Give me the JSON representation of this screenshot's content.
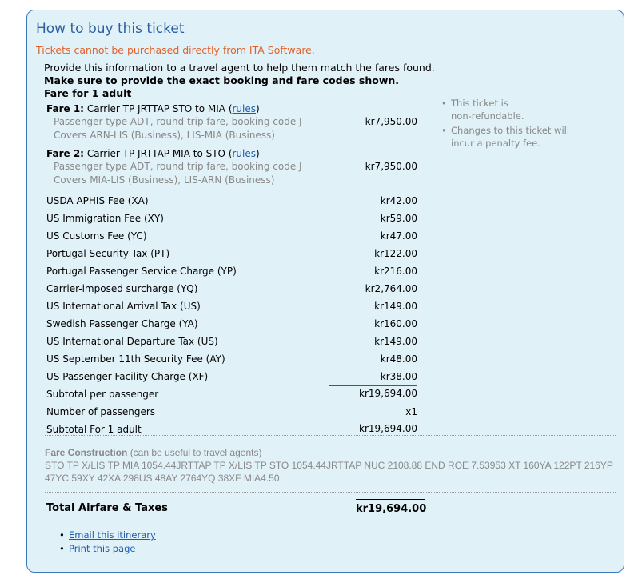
{
  "title": "How to buy this ticket",
  "warning": "Tickets cannot be purchased directly from ITA Software.",
  "intro": {
    "line1": "Provide this information to a travel agent to help them match the fares found.",
    "line2": "Make sure to provide the exact booking and fare codes shown.",
    "line3": "Fare for 1 adult"
  },
  "fares": [
    {
      "label": "Fare 1:",
      "desc": "Carrier TP JRTTAP STO to MIA",
      "rules": "rules",
      "line1": "Passenger type ADT, round trip fare, booking code J",
      "line2": "Covers ARN-LIS (Business), LIS-MIA (Business)",
      "amount": "kr7,950.00"
    },
    {
      "label": "Fare 2:",
      "desc": "Carrier TP JRTTAP MIA to STO",
      "rules": "rules",
      "line1": "Passenger type ADT, round trip fare, booking code J",
      "line2": "Covers MIA-LIS (Business), LIS-ARN (Business)",
      "amount": "kr7,950.00"
    }
  ],
  "taxes": [
    {
      "label": "USDA APHIS Fee (XA)",
      "amount": "kr42.00"
    },
    {
      "label": "US Immigration Fee (XY)",
      "amount": "kr59.00"
    },
    {
      "label": "US Customs Fee (YC)",
      "amount": "kr47.00"
    },
    {
      "label": "Portugal Security Tax (PT)",
      "amount": "kr122.00"
    },
    {
      "label": "Portugal Passenger Service Charge (YP)",
      "amount": "kr216.00"
    },
    {
      "label": "Carrier-imposed surcharge (YQ)",
      "amount": "kr2,764.00"
    },
    {
      "label": "US International Arrival Tax (US)",
      "amount": "kr149.00"
    },
    {
      "label": "Swedish Passenger Charge (YA)",
      "amount": "kr160.00"
    },
    {
      "label": "US International Departure Tax (US)",
      "amount": "kr149.00"
    },
    {
      "label": "US September 11th Security Fee (AY)",
      "amount": "kr48.00"
    },
    {
      "label": "US Passenger Facility Charge (XF)",
      "amount": "kr38.00"
    }
  ],
  "subtotal": {
    "label": "Subtotal per passenger",
    "amount": "kr19,694.00"
  },
  "passengers": {
    "label": "Number of passengers",
    "value": "x1"
  },
  "subtotal_adult": {
    "label": "Subtotal For 1 adult",
    "amount": "kr19,694.00"
  },
  "notes": [
    "This ticket is non-refundable.",
    "Changes to this ticket will incur a penalty fee."
  ],
  "fare_construction": {
    "label": "Fare Construction",
    "hint": "(can be useful to travel agents)",
    "text": "STO TP X/LIS TP MIA 1054.44JRTTAP TP X/LIS TP STO 1054.44JRTTAP NUC 2108.88 END ROE 7.53953 XT 160YA 122PT 216YP 47YC 59XY 42XA 298US 48AY 2764YQ 38XF MIA4.50"
  },
  "total": {
    "label": "Total Airfare & Taxes",
    "amount": "kr19,694.00"
  },
  "links": {
    "email": "Email this itinerary",
    "print": "Print this page"
  }
}
